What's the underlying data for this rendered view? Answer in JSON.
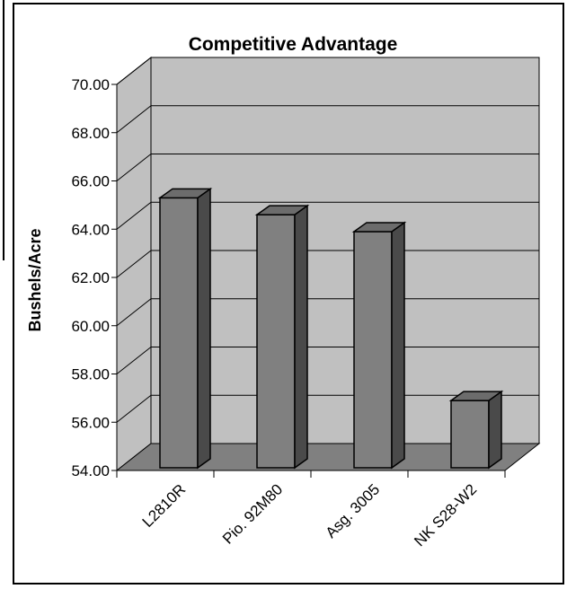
{
  "chart_data": {
    "type": "bar",
    "title": "Competitive Advantage",
    "xlabel": "",
    "ylabel": "Bushels/Acre",
    "categories": [
      "L2810R",
      "Pio. 92M80",
      "Asg. 3005",
      "NK S28-W2"
    ],
    "values": [
      65.3,
      64.6,
      63.9,
      56.9
    ],
    "ylim": [
      54,
      70
    ],
    "yticks": [
      "54.00",
      "56.00",
      "58.00",
      "60.00",
      "62.00",
      "64.00",
      "66.00",
      "68.00",
      "70.00"
    ],
    "grid": true,
    "legend": "none",
    "style": "3d",
    "colors": {
      "bar_front": "#808080",
      "bar_side": "#4a4a4a",
      "bar_top": "#6c6c6c",
      "wall": "#c0c0c0",
      "floor": "#808080",
      "page_line": "#000000"
    }
  }
}
